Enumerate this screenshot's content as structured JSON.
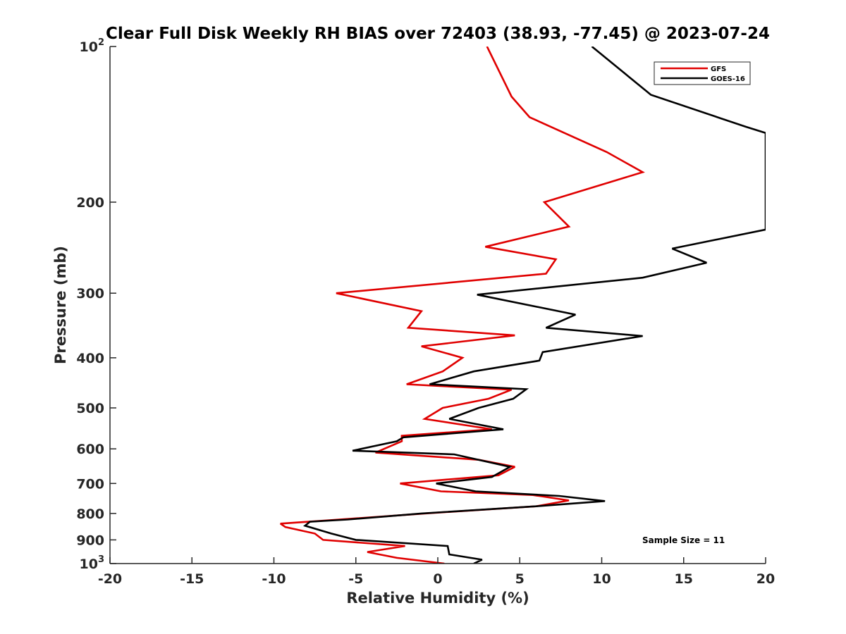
{
  "chart_data": {
    "type": "line",
    "title": "Clear Full Disk Weekly RH BIAS over 72403 (38.93, -77.45) @ 2023-07-24",
    "xlabel": "Relative Humidity (%)",
    "ylabel": "Pressure (mb)",
    "xlim": [
      -20,
      20
    ],
    "ylim": [
      1000,
      100
    ],
    "yscale": "log",
    "x_ticks": [
      "-20",
      "-15",
      "-10",
      "-5",
      "0",
      "5",
      "10",
      "15",
      "20"
    ],
    "y_ticks": [
      {
        "value": 100,
        "label": "10",
        "sup": "2"
      },
      {
        "value": 200,
        "label": "200",
        "sup": ""
      },
      {
        "value": 300,
        "label": "300",
        "sup": ""
      },
      {
        "value": 400,
        "label": "400",
        "sup": ""
      },
      {
        "value": 500,
        "label": "500",
        "sup": ""
      },
      {
        "value": 600,
        "label": "600",
        "sup": ""
      },
      {
        "value": 700,
        "label": "700",
        "sup": ""
      },
      {
        "value": 800,
        "label": "800",
        "sup": ""
      },
      {
        "value": 900,
        "label": "900",
        "sup": ""
      },
      {
        "value": 1000,
        "label": "10",
        "sup": "3"
      }
    ],
    "grid": false,
    "legend_position": "top-right",
    "annotation": "Sample Size = 11",
    "series": [
      {
        "name": "GFS",
        "color": "#e00000",
        "points": [
          {
            "x": 0.4,
            "y": 1000
          },
          {
            "x": -2.5,
            "y": 975
          },
          {
            "x": -4.3,
            "y": 950
          },
          {
            "x": -2.0,
            "y": 925
          },
          {
            "x": -7.0,
            "y": 900
          },
          {
            "x": -7.5,
            "y": 875
          },
          {
            "x": -9.3,
            "y": 850
          },
          {
            "x": -9.6,
            "y": 837
          },
          {
            "x": -6.7,
            "y": 825
          },
          {
            "x": -0.8,
            "y": 800
          },
          {
            "x": 6.0,
            "y": 775
          },
          {
            "x": 8.0,
            "y": 755
          },
          {
            "x": 5.8,
            "y": 737
          },
          {
            "x": 0.2,
            "y": 725
          },
          {
            "x": -2.3,
            "y": 700
          },
          {
            "x": 3.7,
            "y": 675
          },
          {
            "x": 4.7,
            "y": 650
          },
          {
            "x": 2.5,
            "y": 630
          },
          {
            "x": -3.8,
            "y": 610
          },
          {
            "x": -2.2,
            "y": 580
          },
          {
            "x": -2.2,
            "y": 566
          },
          {
            "x": 3.3,
            "y": 550
          },
          {
            "x": -0.8,
            "y": 525
          },
          {
            "x": 0.3,
            "y": 500
          },
          {
            "x": 3.1,
            "y": 480
          },
          {
            "x": 4.5,
            "y": 461
          },
          {
            "x": -1.9,
            "y": 450
          },
          {
            "x": 0.3,
            "y": 425
          },
          {
            "x": 1.5,
            "y": 400
          },
          {
            "x": -1.0,
            "y": 380
          },
          {
            "x": 4.7,
            "y": 362
          },
          {
            "x": -1.8,
            "y": 350
          },
          {
            "x": -1.0,
            "y": 325
          },
          {
            "x": -6.2,
            "y": 300
          },
          {
            "x": 6.6,
            "y": 275
          },
          {
            "x": 7.2,
            "y": 258
          },
          {
            "x": 2.9,
            "y": 244
          },
          {
            "x": 8.0,
            "y": 223
          },
          {
            "x": 6.5,
            "y": 200
          },
          {
            "x": 12.5,
            "y": 175
          },
          {
            "x": 10.3,
            "y": 160
          },
          {
            "x": 5.6,
            "y": 137
          },
          {
            "x": 4.5,
            "y": 125
          },
          {
            "x": 3.0,
            "y": 100
          }
        ]
      },
      {
        "name": "GOES-16",
        "color": "#000000",
        "points": [
          {
            "x": 2.2,
            "y": 1000
          },
          {
            "x": 2.7,
            "y": 983
          },
          {
            "x": 0.7,
            "y": 960
          },
          {
            "x": 0.6,
            "y": 925
          },
          {
            "x": -5.0,
            "y": 900
          },
          {
            "x": -6.5,
            "y": 875
          },
          {
            "x": -8.1,
            "y": 845
          },
          {
            "x": -7.8,
            "y": 830
          },
          {
            "x": -5.5,
            "y": 822
          },
          {
            "x": -1.0,
            "y": 800
          },
          {
            "x": 6.0,
            "y": 775
          },
          {
            "x": 10.2,
            "y": 757
          },
          {
            "x": 7.4,
            "y": 740
          },
          {
            "x": 2.3,
            "y": 725
          },
          {
            "x": -0.1,
            "y": 700
          },
          {
            "x": 3.3,
            "y": 680
          },
          {
            "x": 4.4,
            "y": 650
          },
          {
            "x": 1.0,
            "y": 615
          },
          {
            "x": -5.2,
            "y": 605
          },
          {
            "x": -2.5,
            "y": 580
          },
          {
            "x": -2.1,
            "y": 570
          },
          {
            "x": 4.0,
            "y": 550
          },
          {
            "x": 0.7,
            "y": 525
          },
          {
            "x": 2.5,
            "y": 500
          },
          {
            "x": 4.6,
            "y": 480
          },
          {
            "x": 5.4,
            "y": 460
          },
          {
            "x": -0.5,
            "y": 450
          },
          {
            "x": 2.2,
            "y": 425
          },
          {
            "x": 6.2,
            "y": 405
          },
          {
            "x": 6.4,
            "y": 390
          },
          {
            "x": 12.5,
            "y": 363
          },
          {
            "x": 6.6,
            "y": 350
          },
          {
            "x": 8.4,
            "y": 330
          },
          {
            "x": 2.4,
            "y": 302
          },
          {
            "x": 12.5,
            "y": 280
          },
          {
            "x": 16.4,
            "y": 262
          },
          {
            "x": 14.3,
            "y": 246
          },
          {
            "x": 20.0,
            "y": 226
          },
          {
            "x": 20.0,
            "y": 147
          },
          {
            "x": 18.8,
            "y": 143
          },
          {
            "x": 13.0,
            "y": 124
          },
          {
            "x": 9.4,
            "y": 100
          }
        ]
      }
    ]
  }
}
